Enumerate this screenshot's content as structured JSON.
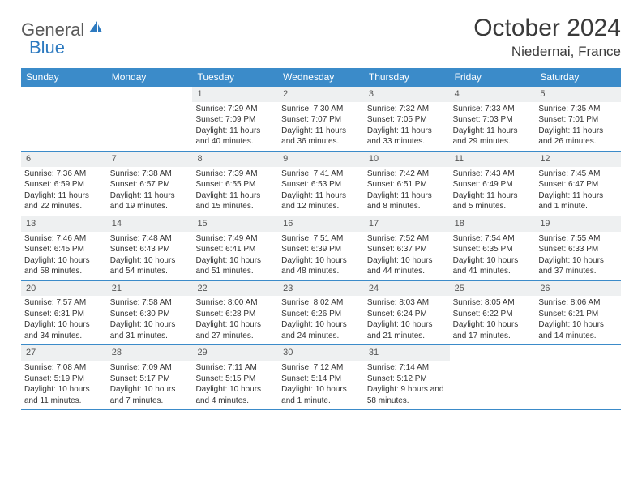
{
  "brand": {
    "part1": "General",
    "part2": "Blue"
  },
  "title": "October 2024",
  "location": "Niedernai, France",
  "colors": {
    "header_bg": "#3b8bc9",
    "daynum_bg": "#eef0f1",
    "border": "#3b8bc9",
    "brand_gray": "#5a5a5a",
    "brand_blue": "#2d7ac0"
  },
  "weekdays": [
    "Sunday",
    "Monday",
    "Tuesday",
    "Wednesday",
    "Thursday",
    "Friday",
    "Saturday"
  ],
  "weeks": [
    [
      {
        "n": "",
        "sr": "",
        "ss": "",
        "dl": ""
      },
      {
        "n": "",
        "sr": "",
        "ss": "",
        "dl": ""
      },
      {
        "n": "1",
        "sr": "7:29 AM",
        "ss": "7:09 PM",
        "dl": "11 hours and 40 minutes."
      },
      {
        "n": "2",
        "sr": "7:30 AM",
        "ss": "7:07 PM",
        "dl": "11 hours and 36 minutes."
      },
      {
        "n": "3",
        "sr": "7:32 AM",
        "ss": "7:05 PM",
        "dl": "11 hours and 33 minutes."
      },
      {
        "n": "4",
        "sr": "7:33 AM",
        "ss": "7:03 PM",
        "dl": "11 hours and 29 minutes."
      },
      {
        "n": "5",
        "sr": "7:35 AM",
        "ss": "7:01 PM",
        "dl": "11 hours and 26 minutes."
      }
    ],
    [
      {
        "n": "6",
        "sr": "7:36 AM",
        "ss": "6:59 PM",
        "dl": "11 hours and 22 minutes."
      },
      {
        "n": "7",
        "sr": "7:38 AM",
        "ss": "6:57 PM",
        "dl": "11 hours and 19 minutes."
      },
      {
        "n": "8",
        "sr": "7:39 AM",
        "ss": "6:55 PM",
        "dl": "11 hours and 15 minutes."
      },
      {
        "n": "9",
        "sr": "7:41 AM",
        "ss": "6:53 PM",
        "dl": "11 hours and 12 minutes."
      },
      {
        "n": "10",
        "sr": "7:42 AM",
        "ss": "6:51 PM",
        "dl": "11 hours and 8 minutes."
      },
      {
        "n": "11",
        "sr": "7:43 AM",
        "ss": "6:49 PM",
        "dl": "11 hours and 5 minutes."
      },
      {
        "n": "12",
        "sr": "7:45 AM",
        "ss": "6:47 PM",
        "dl": "11 hours and 1 minute."
      }
    ],
    [
      {
        "n": "13",
        "sr": "7:46 AM",
        "ss": "6:45 PM",
        "dl": "10 hours and 58 minutes."
      },
      {
        "n": "14",
        "sr": "7:48 AM",
        "ss": "6:43 PM",
        "dl": "10 hours and 54 minutes."
      },
      {
        "n": "15",
        "sr": "7:49 AM",
        "ss": "6:41 PM",
        "dl": "10 hours and 51 minutes."
      },
      {
        "n": "16",
        "sr": "7:51 AM",
        "ss": "6:39 PM",
        "dl": "10 hours and 48 minutes."
      },
      {
        "n": "17",
        "sr": "7:52 AM",
        "ss": "6:37 PM",
        "dl": "10 hours and 44 minutes."
      },
      {
        "n": "18",
        "sr": "7:54 AM",
        "ss": "6:35 PM",
        "dl": "10 hours and 41 minutes."
      },
      {
        "n": "19",
        "sr": "7:55 AM",
        "ss": "6:33 PM",
        "dl": "10 hours and 37 minutes."
      }
    ],
    [
      {
        "n": "20",
        "sr": "7:57 AM",
        "ss": "6:31 PM",
        "dl": "10 hours and 34 minutes."
      },
      {
        "n": "21",
        "sr": "7:58 AM",
        "ss": "6:30 PM",
        "dl": "10 hours and 31 minutes."
      },
      {
        "n": "22",
        "sr": "8:00 AM",
        "ss": "6:28 PM",
        "dl": "10 hours and 27 minutes."
      },
      {
        "n": "23",
        "sr": "8:02 AM",
        "ss": "6:26 PM",
        "dl": "10 hours and 24 minutes."
      },
      {
        "n": "24",
        "sr": "8:03 AM",
        "ss": "6:24 PM",
        "dl": "10 hours and 21 minutes."
      },
      {
        "n": "25",
        "sr": "8:05 AM",
        "ss": "6:22 PM",
        "dl": "10 hours and 17 minutes."
      },
      {
        "n": "26",
        "sr": "8:06 AM",
        "ss": "6:21 PM",
        "dl": "10 hours and 14 minutes."
      }
    ],
    [
      {
        "n": "27",
        "sr": "7:08 AM",
        "ss": "5:19 PM",
        "dl": "10 hours and 11 minutes."
      },
      {
        "n": "28",
        "sr": "7:09 AM",
        "ss": "5:17 PM",
        "dl": "10 hours and 7 minutes."
      },
      {
        "n": "29",
        "sr": "7:11 AM",
        "ss": "5:15 PM",
        "dl": "10 hours and 4 minutes."
      },
      {
        "n": "30",
        "sr": "7:12 AM",
        "ss": "5:14 PM",
        "dl": "10 hours and 1 minute."
      },
      {
        "n": "31",
        "sr": "7:14 AM",
        "ss": "5:12 PM",
        "dl": "9 hours and 58 minutes."
      },
      {
        "n": "",
        "sr": "",
        "ss": "",
        "dl": ""
      },
      {
        "n": "",
        "sr": "",
        "ss": "",
        "dl": ""
      }
    ]
  ]
}
